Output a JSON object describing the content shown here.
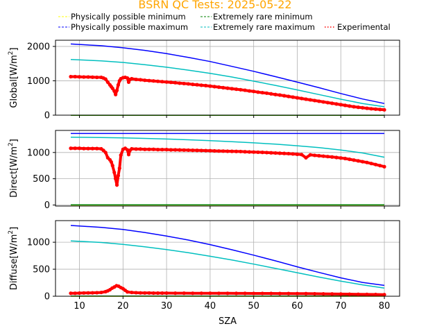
{
  "chart_data": {
    "type": "line",
    "title": "BSRN QC Tests: 2025-05-22",
    "title_color": "#ffa500",
    "xlabel": "SZA",
    "xlim": [
      4.5,
      83.5
    ],
    "xticks": [
      10,
      20,
      30,
      40,
      50,
      60,
      70,
      80
    ],
    "grid": true,
    "legend": {
      "placement": "top",
      "entries": [
        {
          "label": "Physically possible minimum",
          "color": "#ffff00",
          "style": "dashed"
        },
        {
          "label": "Extremely rare minimum",
          "color": "#008000",
          "style": "dashed"
        },
        {
          "label": "Physically possible maximum",
          "color": "#0000ff",
          "style": "dashed"
        },
        {
          "label": "Extremely rare maximum",
          "color": "#00bfbf",
          "style": "dashed"
        },
        {
          "label": "Experimental",
          "color": "#ff0000",
          "style": "dotted"
        }
      ]
    },
    "panels": [
      {
        "ylabel": "Global[W/m²]",
        "ylabel_main": "Global[W/m",
        "ylabel_sup": "2",
        "ylabel_end": "]",
        "ylim": [
          0,
          2180
        ],
        "yticks": [
          0,
          1000,
          2000
        ],
        "show_xtick_labels": false,
        "series": [
          {
            "role": "phys_min",
            "color": "#ffff00",
            "x": [
              8,
              20,
              40,
              60,
              80
            ],
            "y": [
              -4,
              -4,
              -4,
              -4,
              -4
            ]
          },
          {
            "role": "rare_min",
            "color": "#008000",
            "x": [
              8,
              20,
              40,
              60,
              80
            ],
            "y": [
              -2,
              -2,
              -2,
              -2,
              -2
            ]
          },
          {
            "role": "phys_max",
            "color": "#0000ff",
            "x": [
              8,
              15,
              20,
              25,
              30,
              35,
              40,
              45,
              50,
              55,
              60,
              65,
              70,
              75,
              80
            ],
            "y": [
              2070,
              2020,
              1960,
              1885,
              1790,
              1680,
              1560,
              1420,
              1275,
              1120,
              960,
              800,
              630,
              470,
              340
            ]
          },
          {
            "role": "rare_max",
            "color": "#00bfbf",
            "x": [
              8,
              15,
              20,
              25,
              30,
              35,
              40,
              45,
              50,
              55,
              60,
              65,
              70,
              75,
              80
            ],
            "y": [
              1620,
              1580,
              1535,
              1470,
              1395,
              1310,
              1215,
              1110,
              990,
              865,
              735,
              600,
              465,
              340,
              245
            ]
          },
          {
            "role": "experimental",
            "color": "#ff0000",
            "x": [
              8,
              9,
              10,
              11,
              12,
              13,
              14,
              15,
              15.5,
              16,
              16.5,
              17,
              17.3,
              17.6,
              18,
              18.3,
              18.6,
              18.9,
              19.2,
              19.5,
              20,
              20.5,
              21,
              21.3,
              21.6,
              22,
              23,
              24,
              25,
              26,
              27,
              28,
              29,
              30,
              31,
              32,
              33,
              34,
              35,
              36,
              37,
              38,
              39,
              40,
              41,
              42,
              43,
              44,
              45,
              46,
              47,
              48,
              49,
              50,
              51,
              52,
              53,
              54,
              55,
              56,
              57,
              58,
              59,
              60,
              61,
              62,
              63,
              64,
              65,
              66,
              67,
              68,
              69,
              70,
              71,
              72,
              73,
              74,
              75,
              76,
              77,
              78,
              79,
              80
            ],
            "y": [
              1120,
              1120,
              1115,
              1110,
              1110,
              1105,
              1100,
              1100,
              1080,
              1050,
              960,
              880,
              830,
              780,
              700,
              600,
              720,
              880,
              1000,
              1060,
              1090,
              1100,
              1080,
              960,
              1040,
              1060,
              1040,
              1030,
              1015,
              1005,
              995,
              985,
              975,
              965,
              955,
              945,
              930,
              920,
              910,
              895,
              885,
              870,
              860,
              845,
              830,
              815,
              800,
              785,
              770,
              755,
              740,
              725,
              705,
              690,
              670,
              655,
              640,
              620,
              600,
              585,
              565,
              545,
              525,
              505,
              485,
              465,
              445,
              425,
              405,
              385,
              365,
              345,
              325,
              305,
              285,
              265,
              245,
              230,
              215,
              200,
              185,
              175,
              165,
              155
            ]
          }
        ]
      },
      {
        "ylabel": "Direct[W/m²]",
        "ylabel_main": "Direct[W/m",
        "ylabel_sup": "2",
        "ylabel_end": "]",
        "ylim": [
          -20,
          1420
        ],
        "yticks": [
          0,
          500,
          1000
        ],
        "show_xtick_labels": false,
        "series": [
          {
            "role": "phys_min",
            "color": "#ffff00",
            "x": [
              8,
              20,
              40,
              60,
              80
            ],
            "y": [
              0,
              0,
              0,
              0,
              0
            ]
          },
          {
            "role": "rare_min",
            "color": "#008000",
            "x": [
              8,
              20,
              40,
              60,
              80
            ],
            "y": [
              2,
              2,
              2,
              2,
              2
            ]
          },
          {
            "role": "phys_max",
            "color": "#0000ff",
            "x": [
              8,
              80
            ],
            "y": [
              1362,
              1362
            ]
          },
          {
            "role": "rare_max",
            "color": "#00bfbf",
            "x": [
              8,
              15,
              20,
              25,
              30,
              35,
              40,
              45,
              50,
              55,
              60,
              65,
              70,
              75,
              80
            ],
            "y": [
              1290,
              1285,
              1278,
              1268,
              1256,
              1242,
              1225,
              1206,
              1184,
              1158,
              1128,
              1092,
              1048,
              990,
              910
            ]
          },
          {
            "role": "experimental",
            "color": "#ff0000",
            "x": [
              8,
              9,
              10,
              11,
              12,
              13,
              14,
              15,
              15.5,
              16,
              16.5,
              17,
              17.3,
              17.6,
              18,
              18.3,
              18.6,
              18.9,
              19.2,
              19.5,
              20,
              20.5,
              21,
              21.3,
              21.6,
              22,
              23,
              24,
              25,
              26,
              27,
              28,
              29,
              30,
              31,
              32,
              33,
              34,
              35,
              36,
              37,
              38,
              39,
              40,
              41,
              42,
              43,
              44,
              45,
              46,
              47,
              48,
              49,
              50,
              51,
              52,
              53,
              54,
              55,
              56,
              57,
              58,
              59,
              60,
              61,
              62,
              63,
              64,
              65,
              66,
              67,
              68,
              69,
              70,
              71,
              72,
              73,
              74,
              75,
              76,
              77,
              78,
              79,
              80
            ],
            "y": [
              1080,
              1080,
              1080,
              1075,
              1075,
              1075,
              1075,
              1070,
              1040,
              1000,
              900,
              860,
              820,
              750,
              620,
              500,
              380,
              560,
              700,
              950,
              1060,
              1080,
              1050,
              960,
              1040,
              1070,
              1065,
              1065,
              1060,
              1060,
              1060,
              1055,
              1055,
              1055,
              1050,
              1050,
              1048,
              1046,
              1044,
              1042,
              1040,
              1038,
              1036,
              1034,
              1030,
              1028,
              1026,
              1024,
              1022,
              1020,
              1018,
              1014,
              1010,
              1008,
              1005,
              1002,
              998,
              994,
              990,
              986,
              982,
              978,
              972,
              966,
              960,
              900,
              955,
              945,
              938,
              930,
              922,
              915,
              905,
              895,
              885,
              870,
              855,
              840,
              825,
              810,
              790,
              770,
              750,
              730
            ]
          }
        ]
      },
      {
        "ylabel": "Diffuse[W/m²]",
        "ylabel_main": "Diffuse[W/m",
        "ylabel_sup": "2",
        "ylabel_end": "]",
        "ylim": [
          0,
          1400
        ],
        "yticks": [
          0,
          500,
          1000
        ],
        "show_xtick_labels": true,
        "series": [
          {
            "role": "phys_min",
            "color": "#ffff00",
            "x": [
              8,
              20,
              40,
              60,
              80
            ],
            "y": [
              0,
              0,
              0,
              0,
              0
            ]
          },
          {
            "role": "rare_min",
            "color": "#008000",
            "x": [
              8,
              20,
              40,
              60,
              80
            ],
            "y": [
              2,
              2,
              2,
              2,
              2
            ]
          },
          {
            "role": "phys_max",
            "color": "#0000ff",
            "x": [
              8,
              15,
              20,
              25,
              30,
              35,
              40,
              45,
              50,
              55,
              60,
              65,
              70,
              75,
              80
            ],
            "y": [
              1310,
              1275,
              1235,
              1180,
              1115,
              1040,
              955,
              860,
              760,
              655,
              545,
              440,
              340,
              255,
              200
            ]
          },
          {
            "role": "rare_max",
            "color": "#00bfbf",
            "x": [
              8,
              15,
              20,
              25,
              30,
              35,
              40,
              45,
              50,
              55,
              60,
              65,
              70,
              75,
              80
            ],
            "y": [
              1025,
              995,
              960,
              915,
              865,
              805,
              740,
              670,
              595,
              515,
              435,
              355,
              280,
              210,
              150
            ]
          },
          {
            "role": "experimental",
            "color": "#ff0000",
            "x": [
              8,
              9,
              10,
              11,
              12,
              13,
              14,
              15,
              16,
              16.5,
              17,
              17.5,
              18,
              18.5,
              19,
              19.5,
              20,
              20.5,
              21,
              22,
              23,
              24,
              25,
              26,
              27,
              28,
              29,
              30,
              32,
              34,
              36,
              38,
              40,
              42,
              44,
              46,
              48,
              50,
              52,
              54,
              56,
              58,
              60,
              62,
              64,
              66,
              68,
              70,
              72,
              74,
              76,
              78,
              80
            ],
            "y": [
              55,
              55,
              58,
              60,
              62,
              63,
              65,
              70,
              85,
              100,
              120,
              150,
              170,
              195,
              185,
              160,
              140,
              110,
              80,
              70,
              65,
              62,
              60,
              60,
              58,
              58,
              58,
              58,
              56,
              56,
              55,
              55,
              55,
              54,
              54,
              53,
              53,
              52,
              52,
              51,
              50,
              50,
              49,
              48,
              46,
              44,
              42,
              40,
              38,
              36,
              34,
              32,
              30
            ]
          }
        ]
      }
    ]
  }
}
